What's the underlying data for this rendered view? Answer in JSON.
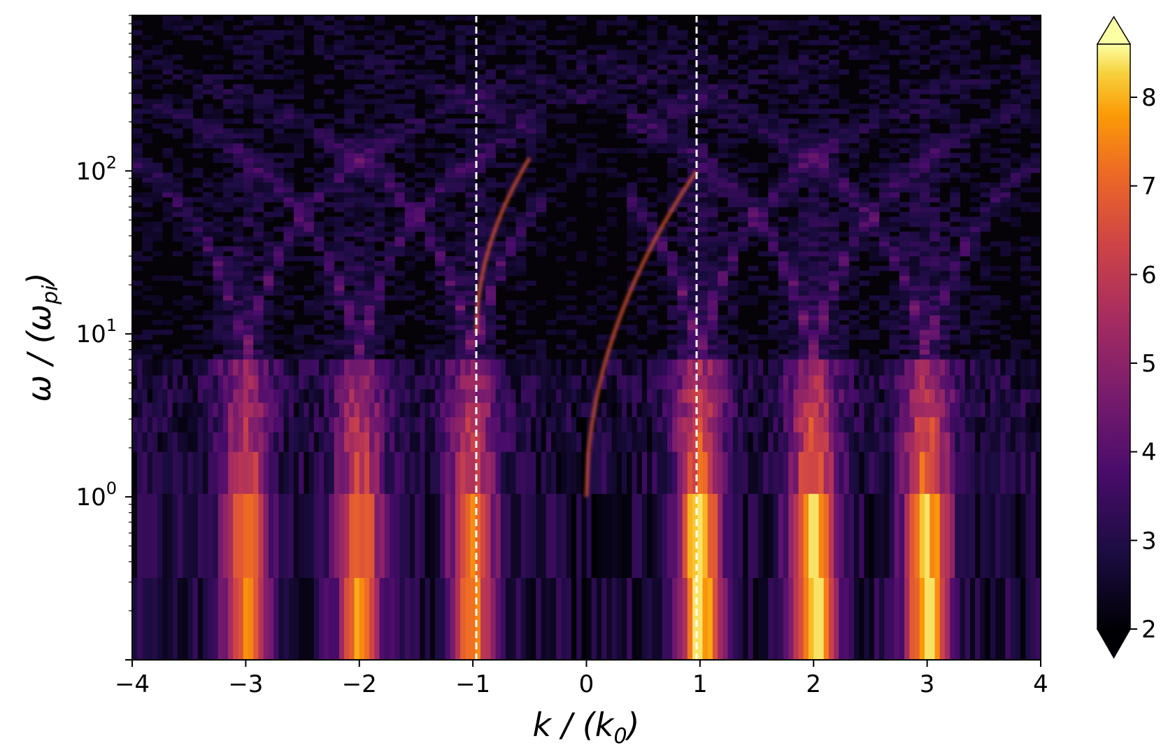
{
  "chart_data": {
    "type": "heatmap",
    "title": "",
    "xlabel": {
      "main": "k / (k",
      "sub": "0",
      "close": ")"
    },
    "ylabel": {
      "main": "ω / (ω",
      "sub": "pi",
      "close": ")"
    },
    "xlim": [
      -4,
      4
    ],
    "ylim": [
      0.1,
      900
    ],
    "yscale": "log",
    "xticks": [
      -4,
      -3,
      -2,
      -1,
      0,
      1,
      2,
      3,
      4
    ],
    "xtick_labels": [
      "−4",
      "−3",
      "−2",
      "−1",
      "0",
      "1",
      "2",
      "3",
      "4"
    ],
    "yticks": [
      1,
      10,
      100
    ],
    "ytick_labels": [
      {
        "base": "10",
        "exp": "0"
      },
      {
        "base": "10",
        "exp": "1"
      },
      {
        "base": "10",
        "exp": "2"
      }
    ],
    "reference_lines": [
      {
        "orientation": "vertical",
        "x": -0.97,
        "style": "dashed",
        "color": "#ffffff"
      },
      {
        "orientation": "vertical",
        "x": 0.97,
        "style": "dashed",
        "color": "#ffffff"
      }
    ],
    "colorbar": {
      "colormap": "inferno",
      "range": [
        2,
        8.6
      ],
      "ticks": [
        2,
        3,
        4,
        5,
        6,
        7,
        8
      ],
      "tick_labels": [
        "2",
        "3",
        "4",
        "5",
        "6",
        "7",
        "8"
      ],
      "extend": "both"
    },
    "features": {
      "vertical_bands_k": [
        -3,
        -2,
        -1,
        1,
        2,
        3
      ],
      "strongest_bands_k": [
        1,
        2,
        3
      ],
      "dispersion_branches": [
        {
          "from_k": 0,
          "to_k": 0.97,
          "omega_range": [
            1,
            100
          ]
        },
        {
          "from_k": -0.97,
          "to_k": -0.5,
          "omega_range": [
            10,
            120
          ]
        }
      ]
    },
    "grid": false,
    "legend": "none"
  }
}
